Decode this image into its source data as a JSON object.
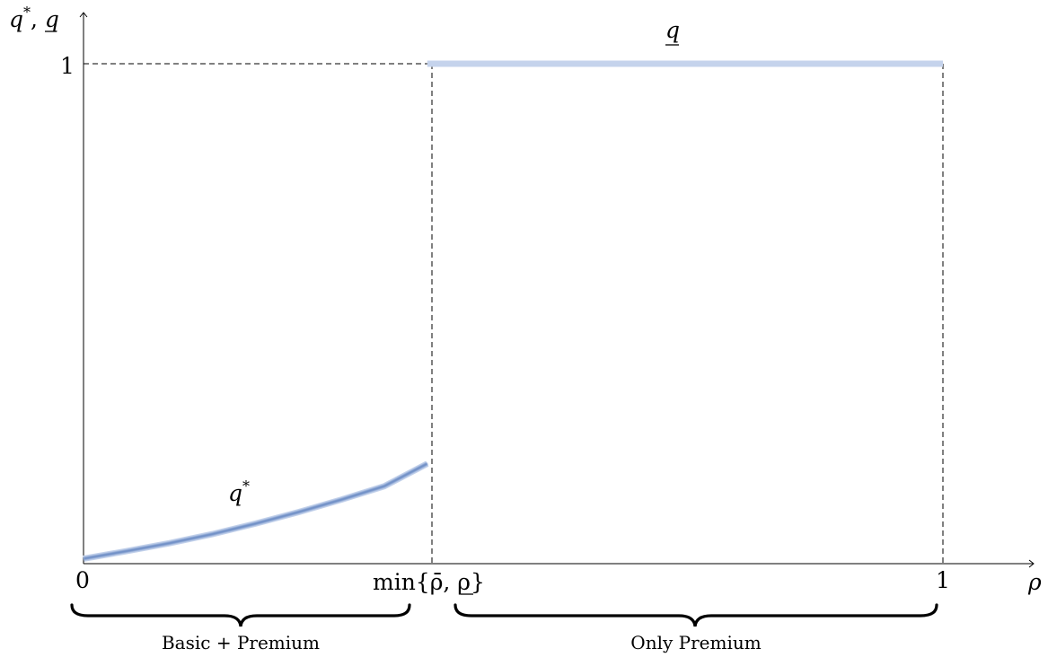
{
  "chart_data": {
    "type": "line",
    "y_axis_label": {
      "base": "q",
      "sup": "*",
      "sep": ", ",
      "second": "q"
    },
    "x_axis_label": "ρ",
    "x_ticks": {
      "zero": "0",
      "threshold": "min{ρ̄, ρ}",
      "one": "1"
    },
    "y_ticks": {
      "one": "1"
    },
    "threshold_x": 0.4,
    "x_range": [
      0,
      1.1
    ],
    "y_range": [
      0,
      1.05
    ],
    "series": [
      {
        "name": "q*",
        "curve_label": {
          "base": "q",
          "sup": "*"
        },
        "x": [
          0,
          0.05,
          0.1,
          0.15,
          0.2,
          0.25,
          0.3,
          0.35,
          0.4
        ],
        "y": [
          0.01,
          0.025,
          0.041,
          0.059,
          0.08,
          0.103,
          0.128,
          0.155,
          0.2
        ]
      },
      {
        "name": "q",
        "curve_label": {
          "base": "q"
        },
        "x": [
          0.4,
          1.0
        ],
        "y": [
          1,
          1
        ]
      }
    ],
    "regions": [
      {
        "label": "Basic + Premium",
        "from": 0,
        "to": 0.4
      },
      {
        "label": "Only Premium",
        "from": 0.4,
        "to": 1.0
      }
    ],
    "line_color": "#6f8fc6",
    "grid": false
  }
}
